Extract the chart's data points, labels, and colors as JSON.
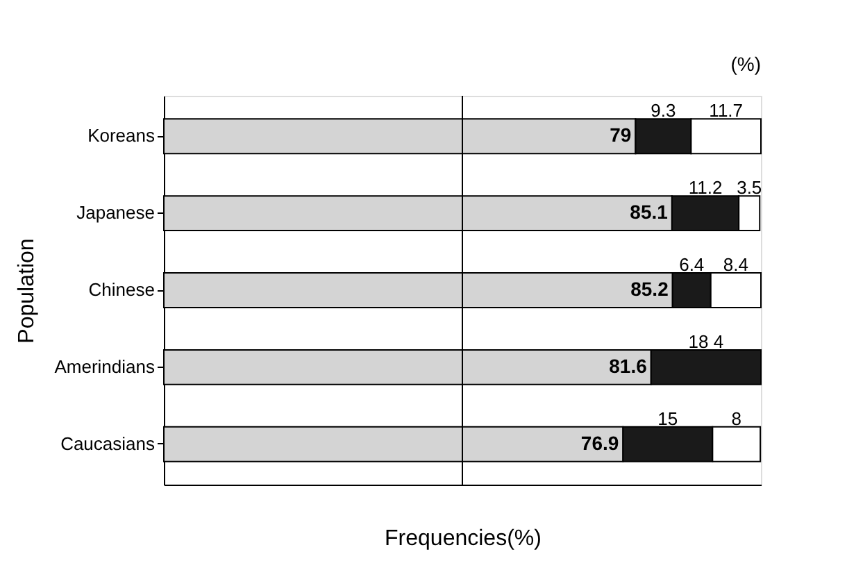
{
  "chart_data": {
    "type": "bar",
    "orientation": "horizontal",
    "stacked": true,
    "categories": [
      "Koreans",
      "Japanese",
      "Chinese",
      "Amerindians",
      "Caucasians"
    ],
    "series": [
      {
        "color": "#d4d4d4",
        "values": [
          79,
          85.1,
          85.2,
          81.6,
          76.9
        ],
        "value_labels": [
          "79",
          "85.1",
          "85.2",
          "81.6",
          "76.9"
        ]
      },
      {
        "color": "#1a1a1a",
        "values": [
          9.3,
          11.2,
          6.4,
          18.4,
          15
        ],
        "value_labels": [
          "9.3",
          "11.2",
          "6.4",
          "18 4",
          "15"
        ]
      },
      {
        "color": "#ffffff",
        "values": [
          11.7,
          3.5,
          8.4,
          null,
          8
        ],
        "value_labels": [
          "11.7",
          "3.5",
          "8.4",
          null,
          "8"
        ]
      }
    ],
    "xlim": [
      0,
      100
    ],
    "xlabel": "Frequencies(%)",
    "ylabel": "Population",
    "ref_lines": [
      {
        "axis": "x",
        "value": 50,
        "label": null
      }
    ],
    "annotations": [
      "(%)"
    ],
    "tick_labels": "y"
  }
}
